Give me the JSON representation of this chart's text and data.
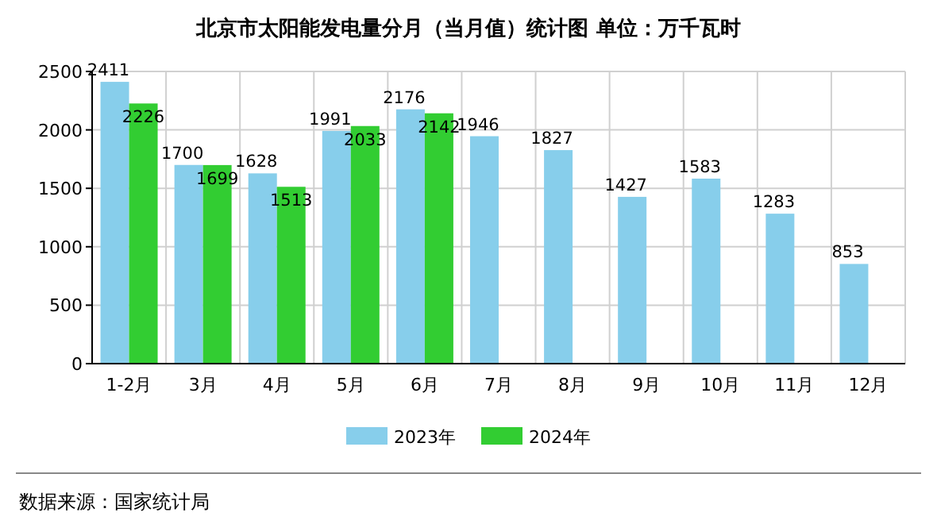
{
  "chart_data": {
    "type": "bar",
    "title": "北京市太阳能发电量分月（当月值）统计图 单位：万千瓦时",
    "categories": [
      "1-2月",
      "3月",
      "4月",
      "5月",
      "6月",
      "7月",
      "8月",
      "9月",
      "10月",
      "11月",
      "12月"
    ],
    "series": [
      {
        "name": "2023年",
        "color": "#87ceeb",
        "values": [
          2411,
          1700,
          1628,
          1991,
          2176,
          1946,
          1827,
          1427,
          1583,
          1283,
          853
        ]
      },
      {
        "name": "2024年",
        "color": "#32cd32",
        "values": [
          2226,
          1699,
          1513,
          2033,
          2142,
          null,
          null,
          null,
          null,
          null,
          null
        ]
      }
    ],
    "ylim": [
      0,
      2500
    ],
    "yticks": [
      0,
      500,
      1000,
      1500,
      2000,
      2500
    ],
    "grid": true,
    "legend": "bottom",
    "data_labels": true,
    "annotations": [
      "数据来源：国家统计局"
    ]
  }
}
